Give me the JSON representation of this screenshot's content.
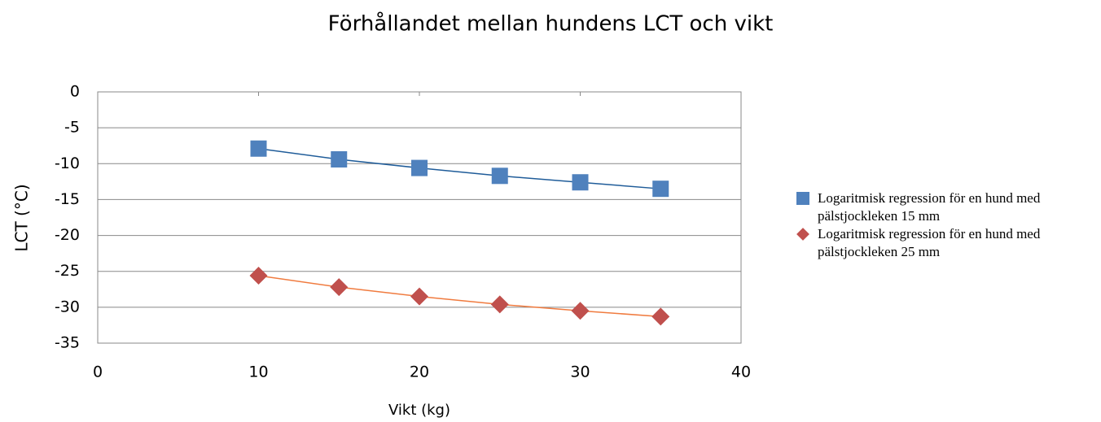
{
  "chart_data": {
    "type": "scatter",
    "title": "Förhållandet mellan hundens LCT och vikt",
    "x_label": "Vikt (kg)",
    "y_label": "LCT (°C)",
    "xlim": [
      0,
      40
    ],
    "xticks": [
      0,
      10,
      20,
      30,
      40
    ],
    "ylim": [
      -35,
      0
    ],
    "yticks": [
      0,
      -5,
      -10,
      -15,
      -20,
      -25,
      -30,
      -35
    ],
    "grid": true,
    "legend": "right",
    "series": [
      {
        "name": "Logaritmisk regression för en hund med pälstjockleken 15 mm",
        "color": "#4f81bd",
        "marker": "square",
        "trendline_color": "#1f5c99",
        "x": [
          10,
          15,
          20,
          25,
          30,
          35
        ],
        "values": [
          -7.9,
          -9.4,
          -10.6,
          -11.7,
          -12.6,
          -13.5
        ]
      },
      {
        "name": "Logaritmisk regression för en hund med pälstjockleken 25 mm",
        "color": "#c0504d",
        "marker": "diamond",
        "trendline_color": "#f07b3f",
        "x": [
          10,
          15,
          20,
          25,
          30,
          35
        ],
        "values": [
          -25.6,
          -27.2,
          -28.5,
          -29.6,
          -30.5,
          -31.3
        ]
      }
    ]
  }
}
